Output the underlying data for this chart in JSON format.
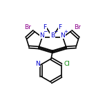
{
  "bg_color": "#ffffff",
  "bond_color": "#000000",
  "atom_colors": {
    "Br": "#8B008B",
    "N": "#0000CD",
    "B": "#0000CD",
    "F": "#0000CD",
    "Cl": "#008000",
    "C": "#000000"
  },
  "figsize": [
    1.52,
    1.52
  ],
  "dpi": 100,
  "lw": 1.2,
  "fs": 6.5
}
